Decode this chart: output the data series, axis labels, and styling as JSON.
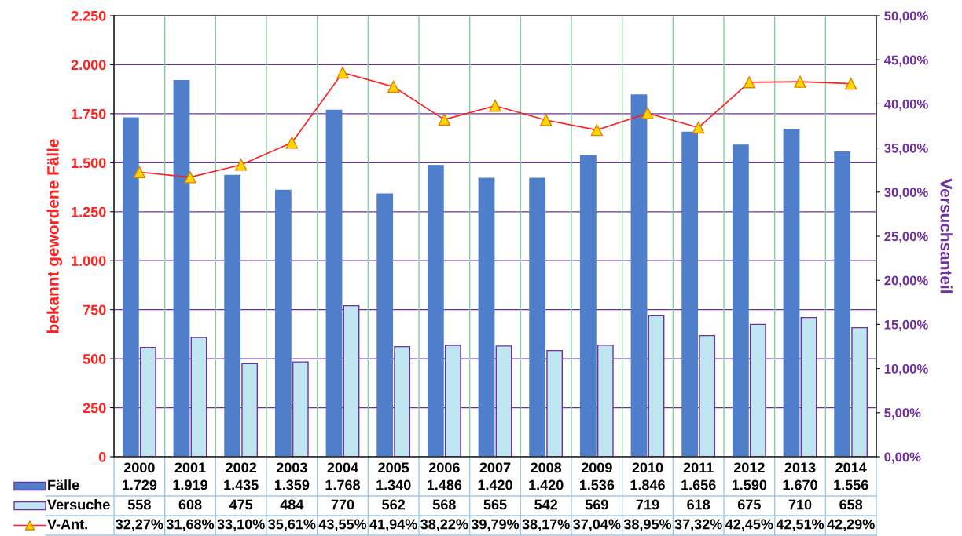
{
  "chart_data": {
    "type": "bar",
    "categories": [
      "2000",
      "2001",
      "2002",
      "2003",
      "2004",
      "2005",
      "2006",
      "2007",
      "2008",
      "2009",
      "2010",
      "2011",
      "2012",
      "2013",
      "2014"
    ],
    "ylabel": "bekannt gewordene Fälle",
    "y2label": "Versuchsanteil",
    "series": [
      {
        "name": "Fälle",
        "color": "#4f7fcb",
        "values": [
          1729,
          1919,
          1435,
          1359,
          1768,
          1340,
          1486,
          1420,
          1420,
          1536,
          1846,
          1656,
          1590,
          1670,
          1556
        ],
        "value_labels": [
          "1.729",
          "1.919",
          "1.435",
          "1.359",
          "1.768",
          "1.340",
          "1.486",
          "1.420",
          "1.420",
          "1.536",
          "1.846",
          "1.656",
          "1.590",
          "1.670",
          "1.556"
        ]
      },
      {
        "name": "Versuche",
        "color": "#bfe6f0",
        "values": [
          558,
          608,
          475,
          484,
          770,
          562,
          568,
          565,
          542,
          569,
          719,
          618,
          675,
          710,
          658
        ],
        "value_labels": [
          "558",
          "608",
          "475",
          "484",
          "770",
          "562",
          "568",
          "565",
          "542",
          "569",
          "719",
          "618",
          "675",
          "710",
          "658"
        ]
      },
      {
        "name": "V-Ant.",
        "type": "line",
        "axis": "y2",
        "color": "#ff2020",
        "marker": "triangle",
        "values": [
          32.27,
          31.68,
          33.1,
          35.61,
          43.55,
          41.94,
          38.22,
          39.79,
          38.17,
          37.04,
          38.95,
          37.32,
          42.45,
          42.51,
          42.29
        ],
        "value_labels": [
          "32,27%",
          "31,68%",
          "33,10%",
          "35,61%",
          "43,55%",
          "41,94%",
          "38,22%",
          "39,79%",
          "38,17%",
          "37,04%",
          "38,95%",
          "37,32%",
          "42,45%",
          "42,51%",
          "42,29%"
        ]
      }
    ],
    "ylim": [
      0,
      2250
    ],
    "yticks": [
      {
        "value": 0,
        "label": "0"
      },
      {
        "value": 250,
        "label": "250"
      },
      {
        "value": 500,
        "label": "500"
      },
      {
        "value": 750,
        "label": "750"
      },
      {
        "value": 1000,
        "label": "1.000"
      },
      {
        "value": 1250,
        "label": "1.250"
      },
      {
        "value": 1500,
        "label": "1.500"
      },
      {
        "value": 1750,
        "label": "1.750"
      },
      {
        "value": 2000,
        "label": "2.000"
      },
      {
        "value": 2250,
        "label": "2.250"
      }
    ],
    "y2lim": [
      0,
      50
    ],
    "y2ticks": [
      {
        "value": 0,
        "label": "0,00%"
      },
      {
        "value": 5,
        "label": "5,00%"
      },
      {
        "value": 10,
        "label": "10,00%"
      },
      {
        "value": 15,
        "label": "15,00%"
      },
      {
        "value": 20,
        "label": "20,00%"
      },
      {
        "value": 25,
        "label": "25,00%"
      },
      {
        "value": 30,
        "label": "30,00%"
      },
      {
        "value": 35,
        "label": "35,00%"
      },
      {
        "value": 40,
        "label": "40,00%"
      },
      {
        "value": 45,
        "label": "45,00%"
      },
      {
        "value": 50,
        "label": "50,00%"
      }
    ],
    "grid": true,
    "legend": "bottom"
  }
}
